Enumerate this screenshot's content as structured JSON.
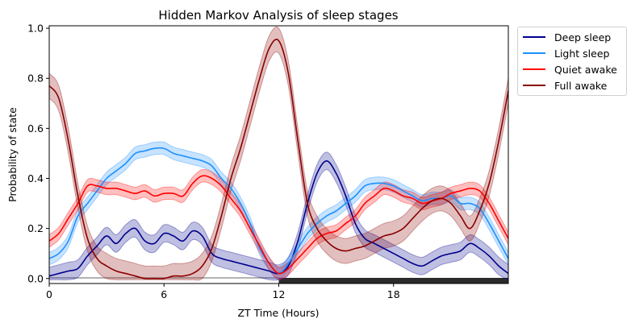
{
  "chart_data": {
    "type": "line",
    "title": "Hidden Markov Analysis of sleep stages",
    "xlabel": "ZT Time (Hours)",
    "ylabel": "Probability of state",
    "xlim": [
      0,
      24
    ],
    "ylim": [
      -0.02,
      1.01
    ],
    "xticks": [
      0,
      6,
      12,
      18
    ],
    "xtick_labels": [
      "0",
      "6",
      "12",
      "18"
    ],
    "yticks": [
      0.0,
      0.2,
      0.4,
      0.6,
      0.8,
      1.0
    ],
    "ytick_labels": [
      "0.0",
      "0.2",
      "0.4",
      "0.6",
      "0.8",
      "1.0"
    ],
    "light_dark_bar": {
      "light": [
        0,
        12
      ],
      "dark": [
        12,
        24
      ],
      "light_color": "#999999",
      "dark_color": "#2b2b2b"
    },
    "legend_position": "outside-top-right",
    "series": [
      {
        "name": "Deep sleep",
        "color": "#00008b",
        "band": 0.035,
        "x": [
          0,
          0.5,
          1,
          1.5,
          2,
          2.5,
          3,
          3.5,
          4,
          4.5,
          5,
          5.5,
          6,
          6.5,
          7,
          7.5,
          8,
          8.5,
          9,
          9.5,
          10,
          10.5,
          11,
          11.5,
          12,
          12.5,
          13,
          13.5,
          14,
          14.5,
          15,
          15.5,
          16,
          16.5,
          17,
          17.5,
          18,
          18.5,
          19,
          19.5,
          20,
          20.5,
          21,
          21.5,
          22,
          22.5,
          23,
          23.5,
          24
        ],
        "values": [
          0.01,
          0.02,
          0.03,
          0.04,
          0.09,
          0.13,
          0.17,
          0.14,
          0.18,
          0.2,
          0.15,
          0.14,
          0.18,
          0.17,
          0.15,
          0.19,
          0.17,
          0.1,
          0.08,
          0.07,
          0.06,
          0.05,
          0.04,
          0.03,
          0.02,
          0.05,
          0.15,
          0.3,
          0.42,
          0.47,
          0.42,
          0.33,
          0.22,
          0.16,
          0.14,
          0.12,
          0.1,
          0.08,
          0.06,
          0.05,
          0.07,
          0.09,
          0.1,
          0.11,
          0.14,
          0.12,
          0.09,
          0.05,
          0.02
        ]
      },
      {
        "name": "Light sleep",
        "color": "#1e90ff",
        "band": 0.025,
        "x": [
          0,
          0.5,
          1,
          1.5,
          2,
          2.5,
          3,
          3.5,
          4,
          4.5,
          5,
          5.5,
          6,
          6.5,
          7,
          7.5,
          8,
          8.5,
          9,
          9.5,
          10,
          10.5,
          11,
          11.5,
          12,
          12.5,
          13,
          13.5,
          14,
          14.5,
          15,
          15.5,
          16,
          16.5,
          17,
          17.5,
          18,
          18.5,
          19,
          19.5,
          20,
          20.5,
          21,
          21.5,
          22,
          22.5,
          23,
          23.5,
          24
        ],
        "values": [
          0.08,
          0.1,
          0.15,
          0.25,
          0.3,
          0.35,
          0.4,
          0.43,
          0.46,
          0.5,
          0.51,
          0.52,
          0.52,
          0.5,
          0.49,
          0.48,
          0.47,
          0.45,
          0.4,
          0.36,
          0.3,
          0.22,
          0.12,
          0.06,
          0.02,
          0.06,
          0.12,
          0.18,
          0.22,
          0.25,
          0.27,
          0.3,
          0.33,
          0.37,
          0.38,
          0.38,
          0.37,
          0.35,
          0.33,
          0.31,
          0.32,
          0.32,
          0.33,
          0.3,
          0.3,
          0.28,
          0.22,
          0.15,
          0.08
        ]
      },
      {
        "name": "Quiet awake",
        "color": "#ff0000",
        "band": 0.025,
        "x": [
          0,
          0.5,
          1,
          1.5,
          2,
          2.5,
          3,
          3.5,
          4,
          4.5,
          5,
          5.5,
          6,
          6.5,
          7,
          7.5,
          8,
          8.5,
          9,
          9.5,
          10,
          10.5,
          11,
          11.5,
          12,
          12.5,
          13,
          13.5,
          14,
          14.5,
          15,
          15.5,
          16,
          16.5,
          17,
          17.5,
          18,
          18.5,
          19,
          19.5,
          20,
          20.5,
          21,
          21.5,
          22,
          22.5,
          23,
          23.5,
          24
        ],
        "values": [
          0.15,
          0.18,
          0.24,
          0.3,
          0.37,
          0.37,
          0.36,
          0.36,
          0.35,
          0.34,
          0.35,
          0.33,
          0.34,
          0.34,
          0.33,
          0.38,
          0.41,
          0.4,
          0.37,
          0.32,
          0.27,
          0.2,
          0.13,
          0.06,
          0.02,
          0.04,
          0.08,
          0.12,
          0.16,
          0.18,
          0.19,
          0.22,
          0.25,
          0.3,
          0.33,
          0.36,
          0.35,
          0.33,
          0.32,
          0.3,
          0.31,
          0.32,
          0.34,
          0.35,
          0.36,
          0.35,
          0.3,
          0.23,
          0.16
        ]
      },
      {
        "name": "Full awake",
        "color": "#8b0000",
        "band": 0.05,
        "x": [
          0,
          0.5,
          1,
          1.5,
          2,
          2.5,
          3,
          3.5,
          4,
          4.5,
          5,
          5.5,
          6,
          6.5,
          7,
          7.5,
          8,
          8.5,
          9,
          9.5,
          10,
          10.5,
          11,
          11.5,
          12,
          12.5,
          13,
          13.5,
          14,
          14.5,
          15,
          15.5,
          16,
          16.5,
          17,
          17.5,
          18,
          18.5,
          19,
          19.5,
          20,
          20.5,
          21,
          21.5,
          22,
          22.5,
          23,
          23.5,
          24
        ],
        "values": [
          0.77,
          0.72,
          0.55,
          0.33,
          0.16,
          0.08,
          0.05,
          0.03,
          0.02,
          0.01,
          0.0,
          0.0,
          0.0,
          0.01,
          0.01,
          0.02,
          0.05,
          0.12,
          0.25,
          0.4,
          0.52,
          0.66,
          0.8,
          0.92,
          0.95,
          0.82,
          0.55,
          0.3,
          0.2,
          0.15,
          0.12,
          0.11,
          0.12,
          0.13,
          0.15,
          0.17,
          0.18,
          0.2,
          0.24,
          0.28,
          0.31,
          0.32,
          0.3,
          0.25,
          0.2,
          0.27,
          0.38,
          0.55,
          0.75
        ]
      }
    ]
  }
}
